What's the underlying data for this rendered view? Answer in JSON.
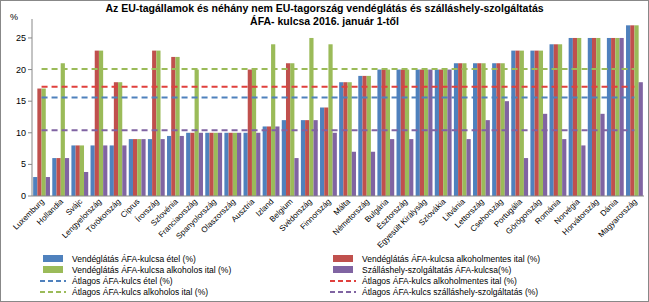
{
  "chart_data": {
    "type": "bar",
    "title": "Az EU-tagállamok és néhány nem EU-tagország vendéglátás és szálláshely-szolgáltatás\nÁFA- kulcsa 2016. január 1-től",
    "y_label": "%",
    "categories": [
      "Luxemburg",
      "Hollandia",
      "Svájc",
      "Lengyelország",
      "Törökország",
      "Ciprus",
      "Írország",
      "Szlovénia",
      "Franciaország",
      "Spanyolország",
      "Olaszország",
      "Ausztria",
      "Izland",
      "Belgium",
      "Svédország",
      "Finnország",
      "Málta",
      "Németország",
      "Bulgária",
      "Észtország",
      "Egyesült Királyság",
      "Szlovákia",
      "Litvánia",
      "Lettország",
      "Csehország",
      "Portugália",
      "Görögország",
      "Románia",
      "Norvégia",
      "Horvátország",
      "Dánia",
      "Magyarország"
    ],
    "series": [
      {
        "name": "Vendéglátás ÁFA-kulcsa étel (%)",
        "color": "#4f81bd",
        "type": "bar",
        "values": [
          3,
          6,
          8,
          8,
          8,
          9,
          9,
          9.5,
          10,
          10,
          10,
          10,
          11,
          12,
          12,
          14,
          18,
          19,
          20,
          20,
          20,
          20,
          21,
          21,
          21,
          23,
          23,
          24,
          25,
          25,
          25,
          27
        ]
      },
      {
        "name": "Vendéglátás ÁFA-kulcsa alkoholmentes ital (%)",
        "color": "#c0504d",
        "type": "bar",
        "values": [
          17,
          6,
          8,
          23,
          18,
          9,
          23,
          22,
          10,
          10,
          10,
          20,
          11,
          21,
          12,
          14,
          18,
          19,
          20,
          20,
          20,
          20,
          21,
          21,
          21,
          23,
          23,
          24,
          25,
          25,
          25,
          27
        ]
      },
      {
        "name": "Vendéglátás ÁFA-kulcsa alkoholos ital (%)",
        "color": "#9bbb59",
        "type": "bar",
        "values": [
          17,
          21,
          8,
          23,
          18,
          9,
          23,
          22,
          20,
          10,
          10,
          20,
          24,
          21,
          25,
          24,
          18,
          19,
          20,
          20,
          20,
          20,
          21,
          21,
          21,
          23,
          23,
          24,
          25,
          25,
          25,
          27
        ]
      },
      {
        "name": "Szálláshely-szolgáltatás  ÁFA-kulcsa(%)",
        "color": "#8064a2",
        "type": "bar",
        "values": [
          3,
          6,
          3.8,
          8,
          8,
          9,
          9,
          9.5,
          10,
          10,
          10,
          10,
          11,
          6,
          12,
          10,
          7,
          7,
          9,
          9,
          20,
          20,
          9,
          12,
          15,
          6,
          13,
          9,
          8,
          13,
          25,
          18
        ]
      },
      {
        "name": "Átlagos ÁFA-kulcs étel (%)",
        "color": "#4f81bd",
        "type": "line",
        "line_style": "dashed",
        "values": [
          15.6,
          15.6,
          15.6,
          15.6,
          15.6,
          15.6,
          15.6,
          15.6,
          15.6,
          15.6,
          15.6,
          15.6,
          15.6,
          15.6,
          15.6,
          15.6,
          15.6,
          15.6,
          15.6,
          15.6,
          15.6,
          15.6,
          15.6,
          15.6,
          15.6,
          15.6,
          15.6,
          15.6,
          15.6,
          15.6,
          15.6,
          15.6
        ]
      },
      {
        "name": "Átlagos ÁFA-kulcs alkoholmentes ital (%)",
        "color": "#e0403d",
        "type": "line",
        "line_style": "dashed",
        "values": [
          17.3,
          17.3,
          17.3,
          17.3,
          17.3,
          17.3,
          17.3,
          17.3,
          17.3,
          17.3,
          17.3,
          17.3,
          17.3,
          17.3,
          17.3,
          17.3,
          17.3,
          17.3,
          17.3,
          17.3,
          17.3,
          17.3,
          17.3,
          17.3,
          17.3,
          17.3,
          17.3,
          17.3,
          17.3,
          17.3,
          17.3,
          17.3
        ]
      },
      {
        "name": "Átlagos ÁFA-kulcs alkoholos ital (%)",
        "color": "#9bbb59",
        "type": "line",
        "line_style": "dashed",
        "values": [
          20.1,
          20.1,
          20.1,
          20.1,
          20.1,
          20.1,
          20.1,
          20.1,
          20.1,
          20.1,
          20.1,
          20.1,
          20.1,
          20.1,
          20.1,
          20.1,
          20.1,
          20.1,
          20.1,
          20.1,
          20.1,
          20.1,
          20.1,
          20.1,
          20.1,
          20.1,
          20.1,
          20.1,
          20.1,
          20.1,
          20.1,
          20.1
        ]
      },
      {
        "name": "Átlagos ÁFA-kulcs szálláshely-szolgáltatás  (%)",
        "color": "#8064a2",
        "type": "line",
        "line_style": "dashed",
        "values": [
          10.4,
          10.4,
          10.4,
          10.4,
          10.4,
          10.4,
          10.4,
          10.4,
          10.4,
          10.4,
          10.4,
          10.4,
          10.4,
          10.4,
          10.4,
          10.4,
          10.4,
          10.4,
          10.4,
          10.4,
          10.4,
          10.4,
          10.4,
          10.4,
          10.4,
          10.4,
          10.4,
          10.4,
          10.4,
          10.4,
          10.4,
          10.4
        ]
      }
    ],
    "ylim": [
      0,
      28
    ],
    "yticks": [
      0,
      5,
      10,
      15,
      20,
      25
    ],
    "grid": false,
    "legend": "bottom"
  }
}
